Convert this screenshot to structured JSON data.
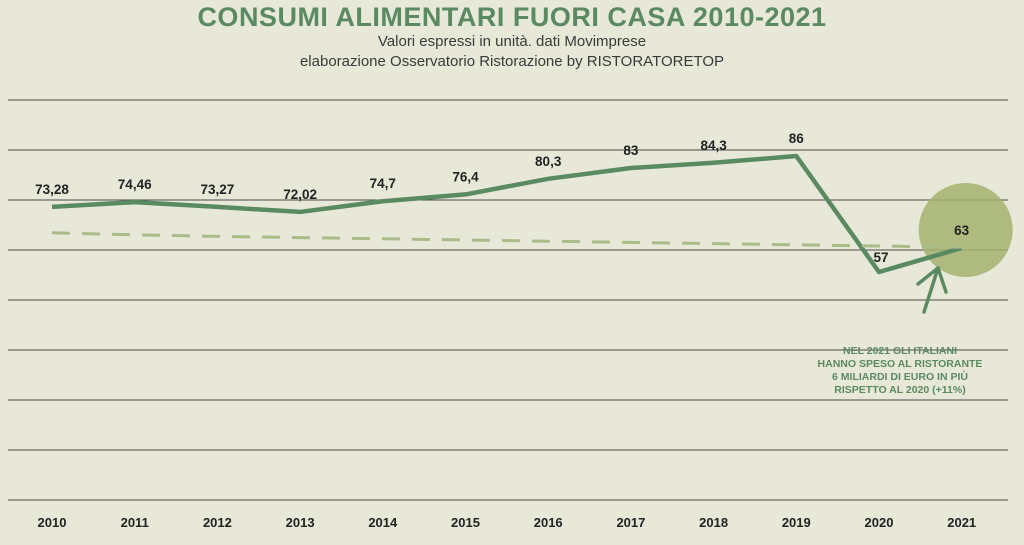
{
  "chart_data": {
    "type": "line",
    "title": "CONSUMI ALIMENTARI FUORI CASA 2010-2021",
    "subtitle_lines": [
      "Valori espressi in unità. dati Movimprese",
      "elaborazione Osservatorio Ristorazione by RISTORATORETOP"
    ],
    "categories": [
      "2010",
      "2011",
      "2012",
      "2013",
      "2014",
      "2015",
      "2016",
      "2017",
      "2018",
      "2019",
      "2020",
      "2021"
    ],
    "series": [
      {
        "values": [
          73.28,
          74.46,
          73.27,
          72.02,
          74.7,
          76.4,
          80.3,
          83,
          84.3,
          86,
          57,
          63
        ],
        "labels": [
          "73,28",
          "74,46",
          "73,27",
          "72,02",
          "74,7",
          "76,4",
          "80,3",
          "83",
          "84,3",
          "86",
          "57",
          "63"
        ],
        "color": "#5a8a62",
        "style": "solid"
      },
      {
        "values": [
          66.8,
          66.3,
          65.9,
          65.6,
          65.3,
          65.0,
          64.7,
          64.4,
          64.1,
          63.8,
          63.5,
          63.2
        ],
        "color": "#a8bb88",
        "style": "dashed"
      }
    ],
    "ylim": [
      0,
      100
    ],
    "grid": true,
    "highlight": {
      "category": "2021",
      "color": "#a3b26e"
    },
    "annotation": {
      "lines": [
        "NEL 2021 GLI ITALIANI",
        "HANNO SPESO AL RISTORANTE",
        "6 MILIARDI DI EURO IN PIÙ",
        "RISPETTO AL 2020 (+11%)"
      ],
      "color": "#5a8a62"
    }
  }
}
